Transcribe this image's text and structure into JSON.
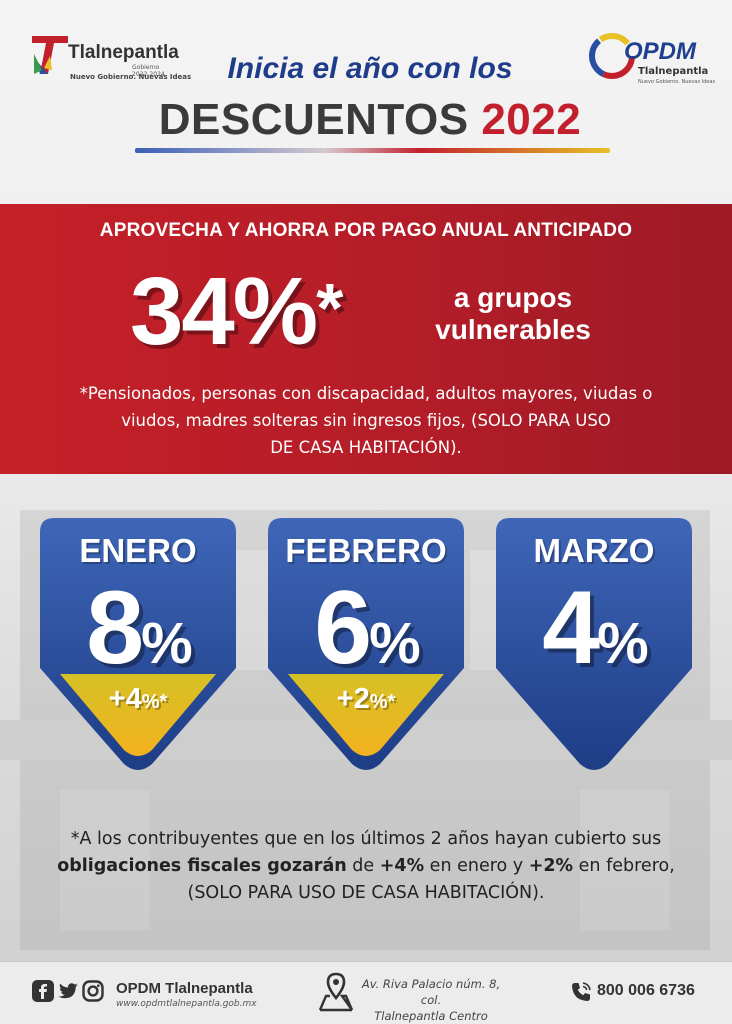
{
  "header": {
    "left_logo": {
      "name": "Tlalnepantla",
      "years": "Gobierno 2022-2024",
      "slogan": "Nuevo Gobierno. Nuevas Ideas"
    },
    "right_logo": {
      "name": "OPDM",
      "sub": "Tlalnepantla",
      "sub2": "Nuevo Gobierno. Nuevas Ideas"
    },
    "title_line1": "Inicia el año con los",
    "title_line2": "DESCUENTOS",
    "title_year": "2022"
  },
  "promo": {
    "heading": "APROVECHA Y AHORRA POR PAGO ANUAL ANTICIPADO",
    "big_value": "34%",
    "big_mark": "*",
    "groups_line1": "a grupos",
    "groups_line2": "vulnerables",
    "note_line1": "*Pensionados, personas con discapacidad, adultos mayores, viudas o",
    "note_line2": "viudos, madres solteras sin ingresos fijos, (SOLO PARA USO",
    "note_line3": "DE CASA HABITACIÓN)."
  },
  "discounts": [
    {
      "month": "ENERO",
      "value": "8",
      "symbol": "%",
      "bonus": "+4",
      "bonus_symbol": "%*"
    },
    {
      "month": "FEBRERO",
      "value": "6",
      "symbol": "%",
      "bonus": "+2",
      "bonus_symbol": "%*"
    },
    {
      "month": "MARZO",
      "value": "4",
      "symbol": "%"
    }
  ],
  "bottom_note": {
    "line1": "*A los contribuyentes que en los últimos 2 años hayan cubierto sus",
    "bold1": "obligaciones fiscales gozarán",
    "text2": " de ",
    "bold2": "+4%",
    "text3": " en enero y ",
    "bold3": "+2%",
    "text4": " en febrero,",
    "line3": "(SOLO PARA USO DE CASA HABITACIÓN)."
  },
  "footer": {
    "social_name": "OPDM Tlalnepantla",
    "website": "www.opdmtlalnepantla.gob.mx",
    "address_line1": "Av. Riva Palacio núm. 8, col.",
    "address_line2": "Tlalnepantla Centro",
    "phone": "800 006 6736"
  },
  "colors": {
    "red": "#c3202e",
    "blue": "#2a4fa0",
    "yellow": "#e7c126",
    "dark": "#3a3a3a"
  },
  "icons": [
    "facebook-icon",
    "twitter-icon",
    "instagram-icon",
    "map-pin-icon",
    "phone-icon"
  ]
}
